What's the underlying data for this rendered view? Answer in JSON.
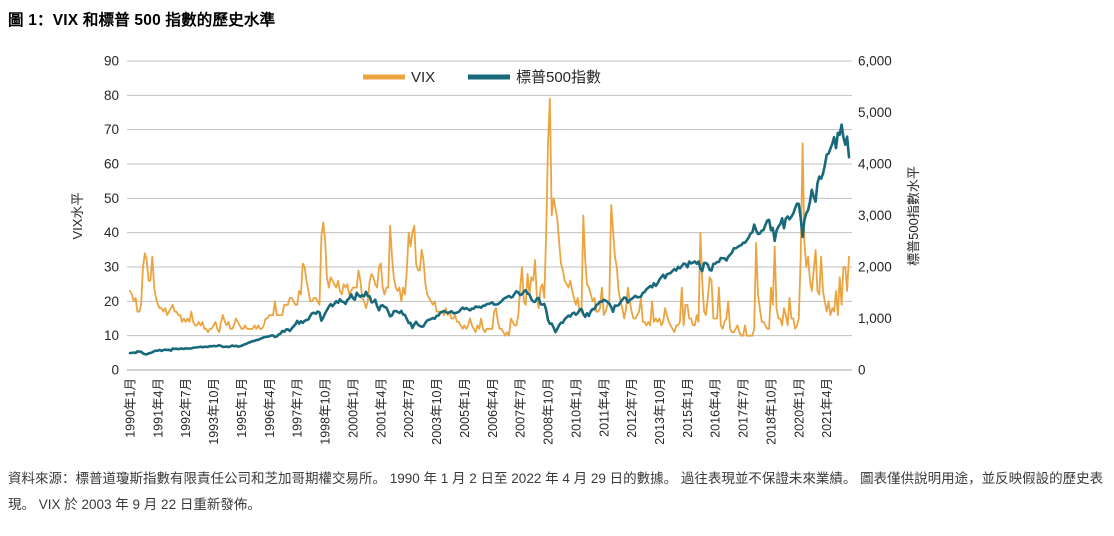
{
  "page": {
    "title": "圖 1：VIX 和標普 500 指數的歷史水準",
    "footnote": "資料來源：標普道瓊斯指數有限責任公司和芝加哥期權交易所。 1990 年 1 月 2 日至 2022 年 4 月 29 日的數據。 過往表現並不保證未來業績。 圖表僅供說明用途，並反映假設的歷史表現。 VIX 於 2003 年 9 月 22 日重新發佈。"
  },
  "chart_data": {
    "type": "line",
    "title": "圖 1：VIX 和標普 500 指數的歷史水準",
    "date_range": "1990年1月 – 2022年4月",
    "grid": "horizontal",
    "grid_color": "#bfbfbf",
    "axis_line_color": "#a6a6a6",
    "legend_position": "top-center",
    "left_axis": {
      "label": "VIX水平",
      "min": 0,
      "max": 90,
      "step": 10
    },
    "right_axis": {
      "label": "標普500指數水平",
      "min": 0,
      "max": 6000,
      "step": 1000
    },
    "x_tick_interval_months": 15,
    "x_tick_labels": [
      "1990年1月",
      "1991年4月",
      "1992年7月",
      "1993年10月",
      "1995年1月",
      "1996年4月",
      "1997年7月",
      "1998年10月",
      "2000年1月",
      "2001年4月",
      "2002年7月",
      "2003年10月",
      "2005年1月",
      "2006年4月",
      "2007年7月",
      "2008年10月",
      "2010年1月",
      "2011年4月",
      "2012年7月",
      "2013年10月",
      "2015年1月",
      "2016年4月",
      "2017年7月",
      "2018年10月",
      "2020年1月",
      "2021年4月"
    ],
    "series": [
      {
        "name": "VIX",
        "axis": "left",
        "color": "#eba43f",
        "stroke_width": 1.8,
        "monthly_values": [
          23,
          22,
          20,
          21,
          17,
          17,
          19,
          30,
          34,
          32,
          26,
          26,
          33,
          24,
          21,
          19,
          18,
          18,
          17,
          18,
          16,
          17,
          18,
          19,
          17,
          17,
          16,
          16,
          14,
          15,
          14,
          15,
          14,
          17,
          14,
          13,
          13,
          14,
          13,
          14,
          12,
          12,
          11,
          12,
          12,
          13,
          14,
          12,
          11,
          14,
          16,
          14,
          13,
          14,
          12,
          12,
          13,
          15,
          14,
          13,
          12,
          12,
          13,
          12,
          12,
          12,
          12,
          13,
          12,
          13,
          12,
          12,
          13,
          15,
          15,
          16,
          16,
          16,
          20,
          16,
          16,
          16,
          16,
          19,
          19,
          19,
          21,
          21,
          20,
          19,
          19,
          23,
          22,
          31,
          30,
          26,
          23,
          20,
          20,
          21,
          21,
          20,
          19,
          39,
          43,
          38,
          27,
          24,
          27,
          26,
          25,
          24,
          26,
          23,
          22,
          25,
          24,
          25,
          22,
          23,
          24,
          24,
          24,
          29,
          26,
          21,
          20,
          18,
          20,
          26,
          28,
          27,
          25,
          24,
          30,
          31,
          24,
          22,
          24,
          24,
          42,
          33,
          27,
          24,
          23,
          24,
          20,
          24,
          22,
          29,
          40,
          36,
          40,
          42,
          31,
          29,
          29,
          35,
          32,
          25,
          22,
          21,
          20,
          19,
          20,
          17,
          17,
          17,
          17,
          16,
          18,
          16,
          17,
          15,
          15,
          16,
          14,
          14,
          13,
          12,
          13,
          12,
          13,
          15,
          13,
          12,
          11,
          13,
          12,
          15,
          12,
          11,
          12,
          12,
          12,
          12,
          17,
          18,
          14,
          12,
          12,
          11,
          10,
          11,
          10,
          15,
          14,
          13,
          13,
          16,
          24,
          30,
          20,
          19,
          28,
          22,
          27,
          26,
          32,
          21,
          18,
          24,
          25,
          21,
          40,
          66,
          79,
          45,
          50,
          47,
          44,
          37,
          31,
          29,
          26,
          25,
          24,
          26,
          23,
          21,
          19,
          21,
          17,
          17,
          45,
          32,
          25,
          24,
          22,
          20,
          21,
          17,
          17,
          18,
          24,
          16,
          17,
          19,
          20,
          48,
          41,
          33,
          30,
          23,
          20,
          18,
          15,
          18,
          24,
          20,
          17,
          15,
          15,
          16,
          17,
          21,
          14,
          14,
          13,
          14,
          13,
          20,
          14,
          15,
          14,
          15,
          13,
          14,
          18,
          16,
          14,
          13,
          12,
          11,
          13,
          13,
          14,
          24,
          13,
          19,
          19,
          15,
          15,
          13,
          13,
          16,
          14,
          40,
          26,
          17,
          16,
          21,
          27,
          26,
          15,
          15,
          15,
          24,
          13,
          12,
          14,
          15,
          20,
          12,
          11,
          11,
          12,
          13,
          11,
          10,
          10,
          13,
          10,
          10,
          10,
          10,
          12,
          37,
          22,
          18,
          14,
          14,
          13,
          12,
          12,
          24,
          19,
          36,
          18,
          15,
          15,
          13,
          18,
          16,
          13,
          21,
          15,
          15,
          12,
          13,
          15,
          33,
          66,
          37,
          30,
          33,
          26,
          23,
          29,
          35,
          23,
          22,
          33,
          23,
          20,
          17,
          20,
          16,
          18,
          17,
          23,
          16,
          27,
          19,
          30,
          30,
          23,
          33
        ]
      },
      {
        "name": "標普500指數",
        "axis": "right",
        "color": "#17697b",
        "stroke_width": 2.6,
        "monthly_values": [
          330,
          332,
          340,
          331,
          361,
          358,
          356,
          323,
          306,
          304,
          322,
          330,
          344,
          367,
          375,
          375,
          390,
          371,
          388,
          395,
          388,
          392,
          375,
          417,
          409,
          413,
          404,
          415,
          415,
          408,
          424,
          414,
          418,
          419,
          431,
          436,
          439,
          444,
          452,
          440,
          450,
          451,
          448,
          464,
          459,
          468,
          462,
          466,
          482,
          467,
          446,
          451,
          457,
          444,
          458,
          475,
          463,
          472,
          454,
          459,
          470,
          487,
          501,
          515,
          533,
          545,
          562,
          562,
          584,
          582,
          605,
          616,
          636,
          640,
          646,
          654,
          669,
          671,
          640,
          652,
          687,
          705,
          757,
          741,
          786,
          791,
          757,
          801,
          848,
          885,
          954,
          899,
          947,
          915,
          955,
          970,
          980,
          1049,
          1102,
          1112,
          1091,
          1134,
          1121,
          957,
          1017,
          1099,
          1164,
          1229,
          1280,
          1238,
          1286,
          1335,
          1302,
          1373,
          1329,
          1320,
          1283,
          1363,
          1389,
          1469,
          1394,
          1366,
          1499,
          1452,
          1421,
          1455,
          1431,
          1518,
          1437,
          1429,
          1315,
          1320,
          1366,
          1240,
          1160,
          1249,
          1256,
          1224,
          1211,
          1134,
          1041,
          1060,
          1139,
          1148,
          1130,
          1107,
          1147,
          1077,
          1067,
          990,
          911,
          916,
          815,
          886,
          936,
          880,
          856,
          841,
          848,
          917,
          964,
          975,
          990,
          1008,
          996,
          1051,
          1058,
          1112,
          1131,
          1145,
          1126,
          1107,
          1121,
          1141,
          1102,
          1104,
          1115,
          1130,
          1174,
          1212,
          1181,
          1204,
          1181,
          1157,
          1192,
          1191,
          1234,
          1220,
          1229,
          1207,
          1249,
          1248,
          1280,
          1281,
          1295,
          1311,
          1270,
          1270,
          1277,
          1304,
          1336,
          1378,
          1401,
          1418,
          1438,
          1407,
          1421,
          1482,
          1531,
          1503,
          1455,
          1474,
          1527,
          1549,
          1481,
          1468,
          1379,
          1331,
          1323,
          1386,
          1400,
          1280,
          1267,
          1283,
          1166,
          969,
          896,
          903,
          826,
          735,
          798,
          873,
          919,
          919,
          987,
          1021,
          1057,
          1036,
          1096,
          1115,
          1074,
          1104,
          1169,
          1187,
          1089,
          1031,
          1102,
          1049,
          1141,
          1183,
          1181,
          1258,
          1286,
          1327,
          1326,
          1364,
          1345,
          1321,
          1292,
          1219,
          1131,
          1253,
          1247,
          1258,
          1312,
          1366,
          1408,
          1398,
          1310,
          1362,
          1379,
          1407,
          1441,
          1412,
          1416,
          1426,
          1498,
          1515,
          1569,
          1598,
          1631,
          1606,
          1686,
          1633,
          1682,
          1757,
          1806,
          1848,
          1783,
          1859,
          1872,
          1884,
          1924,
          1960,
          1931,
          2003,
          1972,
          2018,
          2068,
          2059,
          1995,
          2105,
          2068,
          2086,
          2107,
          2063,
          2104,
          1972,
          1920,
          2079,
          2080,
          2044,
          1940,
          1932,
          2060,
          2065,
          2097,
          2099,
          2174,
          2171,
          2168,
          2126,
          2199,
          2239,
          2279,
          2364,
          2363,
          2384,
          2412,
          2423,
          2470,
          2472,
          2519,
          2575,
          2648,
          2674,
          2824,
          2714,
          2641,
          2648,
          2705,
          2718,
          2816,
          2902,
          2914,
          2712,
          2760,
          2507,
          2704,
          2784,
          2834,
          2946,
          2752,
          2942,
          2980,
          2926,
          2977,
          3038,
          3141,
          3231,
          3226,
          2954,
          2585,
          2912,
          3044,
          3100,
          3271,
          3500,
          3363,
          3270,
          3622,
          3756,
          3714,
          3811,
          3973,
          4181,
          4204,
          4298,
          4395,
          4523,
          4308,
          4605,
          4567,
          4766,
          4516,
          4374,
          4530,
          4132
        ]
      }
    ]
  }
}
